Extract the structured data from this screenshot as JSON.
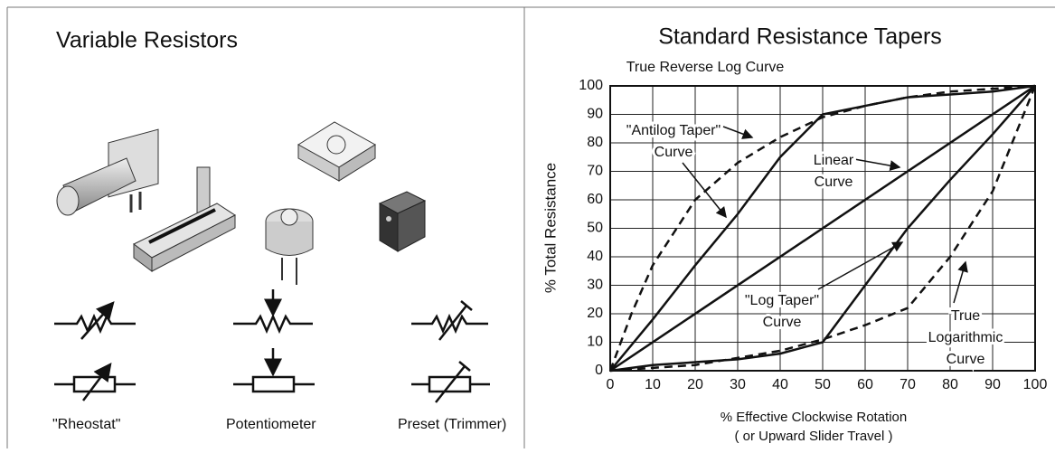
{
  "left_panel": {
    "title": "Variable Resistors",
    "labels": [
      "\"Rheostat\"",
      "Potentiometer",
      "Preset (Trimmer)"
    ]
  },
  "chart_data": {
    "type": "line",
    "title": "Standard Resistance Tapers",
    "y_label": "% Total Resistance",
    "x_label": [
      "% Effective Clockwise Rotation",
      "( or Upward Slider Travel )"
    ],
    "xlim": [
      0,
      100
    ],
    "ylim": [
      0,
      100
    ],
    "xticks": [
      0,
      10,
      20,
      30,
      40,
      50,
      60,
      70,
      80,
      90,
      100
    ],
    "yticks": [
      0,
      10,
      20,
      30,
      40,
      50,
      60,
      70,
      80,
      90,
      100
    ],
    "grid": true,
    "series": [
      {
        "color": "#111111",
        "dashed": false,
        "x": [
          0,
          100
        ],
        "values": [
          0,
          100
        ]
      },
      {
        "color": "#111111",
        "dashed": false,
        "x": [
          0,
          10,
          20,
          30,
          40,
          50,
          60,
          70,
          80,
          90,
          100
        ],
        "values": [
          0,
          18,
          37,
          55,
          75,
          90,
          93,
          96,
          97,
          98,
          100
        ]
      },
      {
        "color": "#111111",
        "dashed": false,
        "x": [
          0,
          10,
          20,
          30,
          40,
          50,
          60,
          70,
          80,
          90,
          100
        ],
        "values": [
          0,
          2,
          3,
          4,
          6,
          10,
          30,
          50,
          67,
          83,
          100
        ]
      },
      {
        "color": "#111111",
        "dashed": true,
        "x": [
          0,
          5,
          10,
          20,
          30,
          40,
          50,
          60,
          70,
          80,
          100
        ],
        "values": [
          0,
          20,
          37,
          60,
          73,
          82,
          89,
          93,
          96,
          98,
          100
        ]
      },
      {
        "color": "#111111",
        "dashed": true,
        "x": [
          0,
          20,
          40,
          50,
          60,
          70,
          80,
          90,
          100
        ],
        "values": [
          0,
          2,
          7,
          11,
          16,
          22,
          40,
          63,
          100
        ]
      }
    ],
    "annotations": [
      [
        "True Reverse Log Curve"
      ],
      [
        "\"Antilog Taper\"",
        "Curve"
      ],
      [
        "Linear",
        "Curve"
      ],
      [
        "\"Log Taper\"",
        "Curve"
      ],
      [
        "True",
        "Logarithmic",
        "Curve"
      ]
    ]
  }
}
